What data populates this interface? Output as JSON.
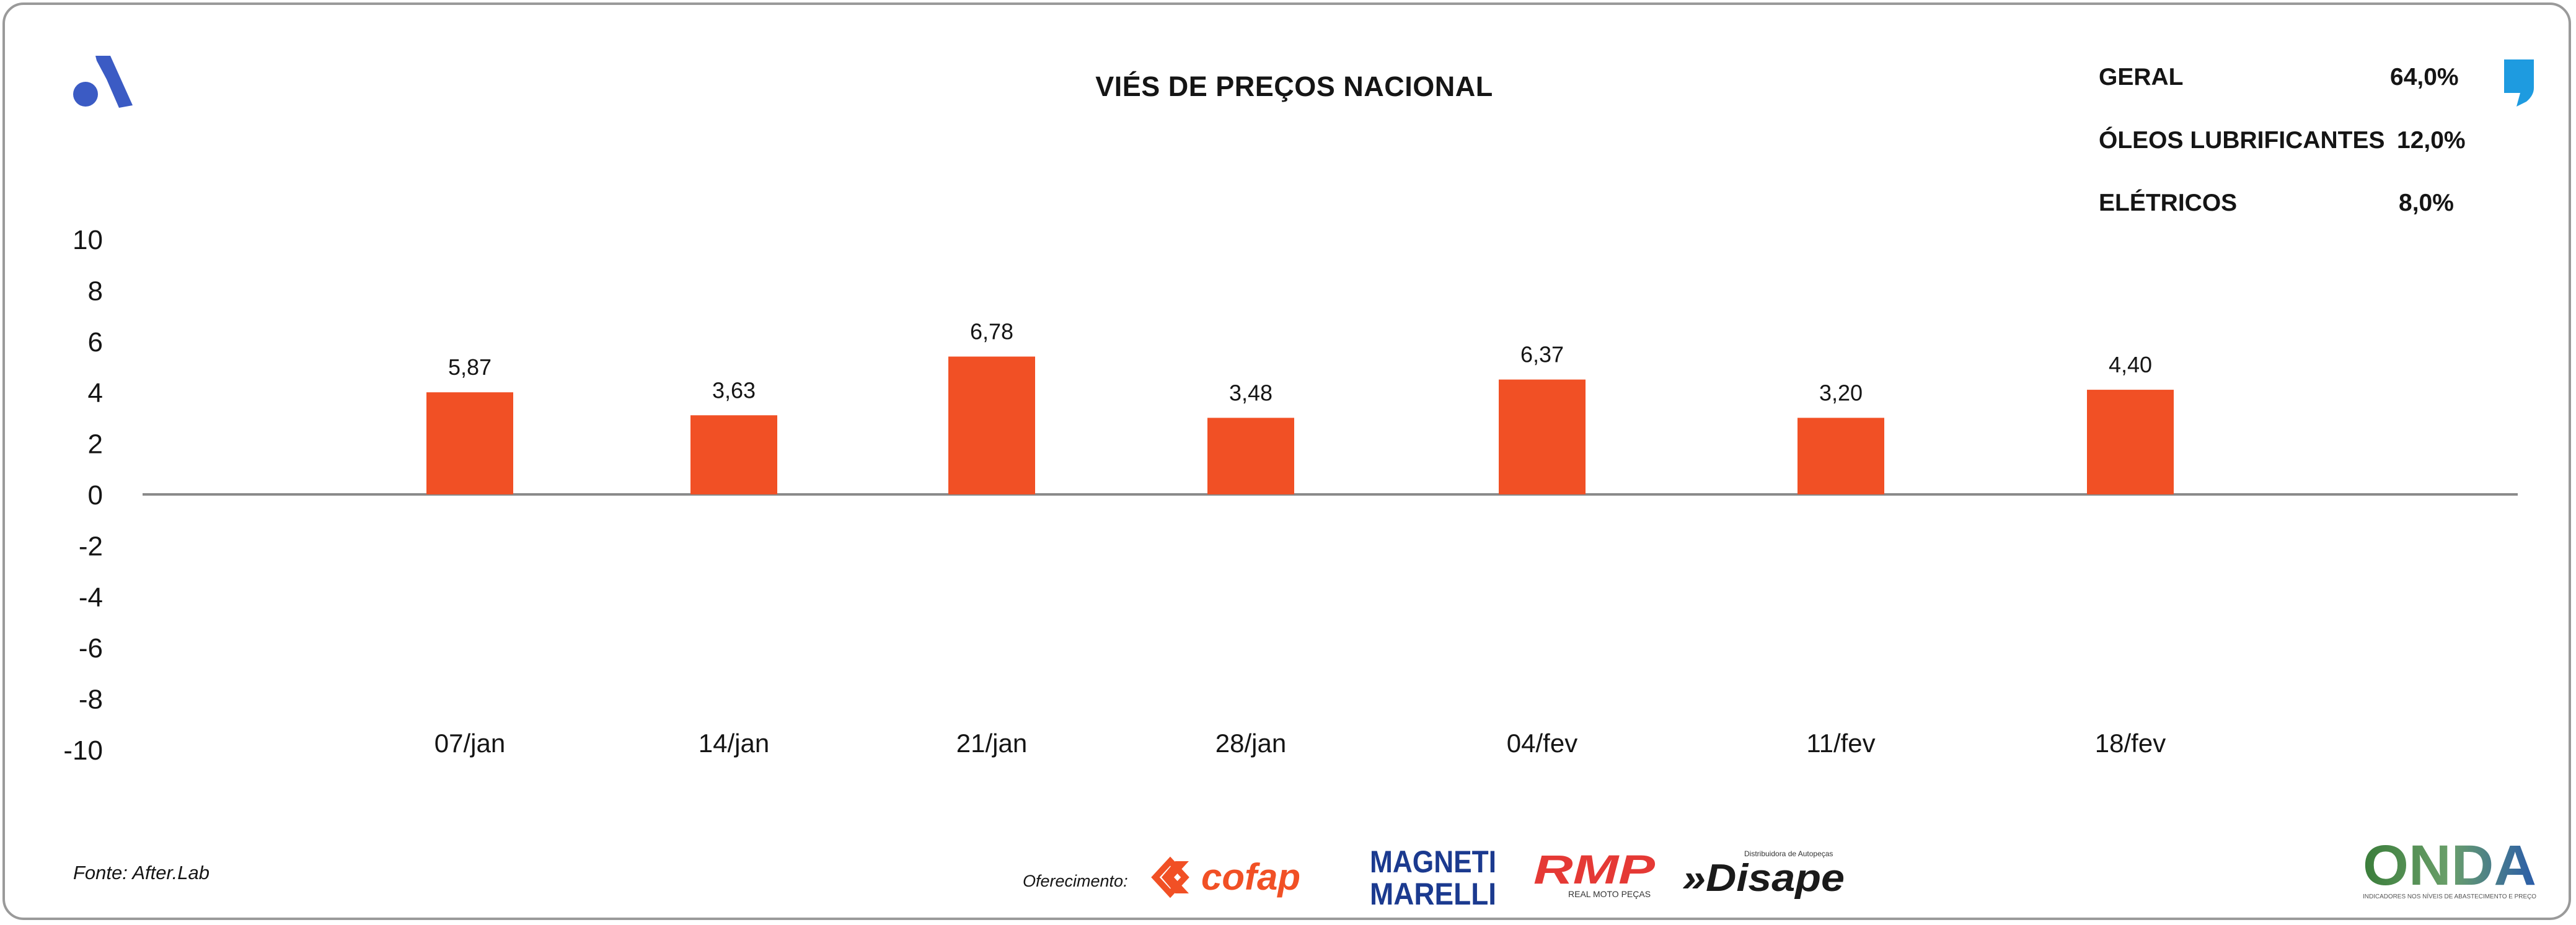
{
  "header": {
    "title": "VIÉS DE PREÇOS NACIONAL"
  },
  "stats": [
    {
      "label": "GERAL",
      "value": "64,0%"
    },
    {
      "label": "ÓLEOS LUBRIFICANTES",
      "value": "12,0%"
    },
    {
      "label": "ELÉTRICOS",
      "value": "8,0%"
    }
  ],
  "footer": {
    "source": "Fonte: After.Lab",
    "sponsor_label": "Oferecimento:",
    "sponsors": [
      "cofap",
      "MAGNETI MARELLI",
      "RMP",
      "»Disape"
    ],
    "rmp_tagline": "REAL MOTO PEÇAS",
    "disape_tagline": "Distribuidora de Autopeças",
    "brand": "ONDA",
    "brand_tagline": "INDICADORES NOS NÍVEIS DE ABASTECIMENTO E PREÇO"
  },
  "colors": {
    "bar": "#F15025",
    "axis": "#8a8a8a",
    "brand_blue": "#3B5BC4",
    "quote_blue": "#1E9BE0",
    "cofap": "#F15025",
    "magneti": "#1B3A8F",
    "rmp": "#E53935"
  },
  "icons": {
    "top_left": "brand-a-icon",
    "top_right": "quote-mark-icon"
  },
  "chart_data": {
    "type": "bar",
    "categories": [
      "07/jan",
      "14/jan",
      "21/jan",
      "28/jan",
      "04/fev",
      "11/fev",
      "18/fev"
    ],
    "values": [
      5.87,
      3.63,
      6.78,
      3.48,
      6.37,
      3.2,
      4.4
    ],
    "value_labels": [
      "5,87",
      "3,63",
      "6,78",
      "3,48",
      "6,37",
      "3,20",
      "4,40"
    ],
    "bar_heights": [
      4.0,
      3.1,
      5.4,
      3.0,
      4.5,
      3.0,
      4.1
    ],
    "yticks": [
      10,
      8,
      6,
      4,
      2,
      0,
      -2,
      -4,
      -6,
      -8,
      -10
    ],
    "ylim": [
      -10,
      10
    ],
    "title": "VIÉS DE PREÇOS NACIONAL",
    "xlabel": "",
    "ylabel": "",
    "grid": false,
    "legend": "none"
  }
}
